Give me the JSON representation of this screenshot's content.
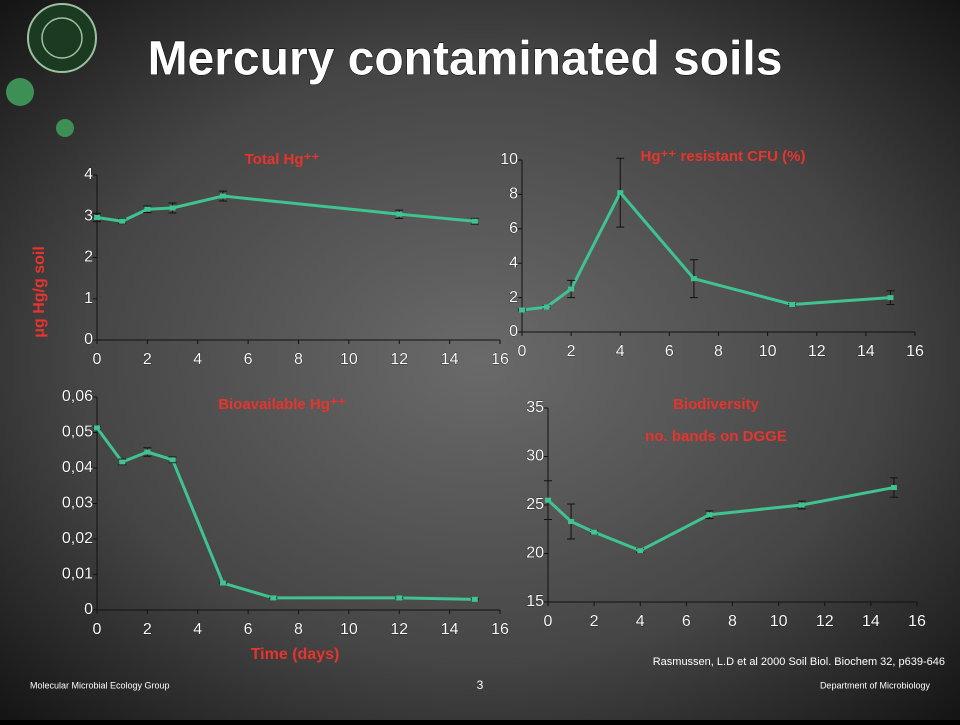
{
  "header": {
    "title": "Mercury contaminated soils"
  },
  "y_axis_label": "μg Hg/g soil",
  "x_axis_label": "Time (days)",
  "citation": "Rasmussen, L.D et al 2000 Soil Biol. Biochem 32, p639-646",
  "footer": {
    "left": "Molecular Microbial Ecology Group",
    "page": "3",
    "right": "Department of Microbiology"
  },
  "chart_data": [
    {
      "type": "line",
      "title": "Total Hg⁺⁺",
      "x": [
        0,
        1,
        2,
        3,
        5,
        12,
        15
      ],
      "series": [
        {
          "color": "#3fc391",
          "values": [
            2.97,
            2.88,
            3.17,
            3.2,
            3.49,
            3.05,
            2.88
          ],
          "errors": [
            0.1,
            0.06,
            0.08,
            0.12,
            0.12,
            0.1,
            0.07
          ]
        }
      ],
      "xlim": [
        0,
        16
      ],
      "xticks": [
        0,
        2,
        4,
        6,
        8,
        10,
        12,
        14,
        16
      ],
      "ylim": [
        0,
        4
      ],
      "yticks": [
        0,
        1,
        2,
        3,
        4
      ]
    },
    {
      "type": "line",
      "title": "Hg⁺⁺ resistant CFU (%)",
      "x": [
        0,
        1,
        2,
        4,
        7,
        11,
        15
      ],
      "series": [
        {
          "color": "#3fc391",
          "values": [
            1.28,
            1.45,
            2.5,
            8.1,
            3.1,
            1.6,
            2.0
          ],
          "errors": [
            0.05,
            0.1,
            0.5,
            2.0,
            1.1,
            0.05,
            0.4
          ]
        }
      ],
      "xlim": [
        0,
        16
      ],
      "xticks": [
        0,
        2,
        4,
        6,
        8,
        10,
        12,
        14,
        16
      ],
      "ylim": [
        0,
        10
      ],
      "yticks": [
        0,
        2,
        4,
        6,
        8,
        10
      ]
    },
    {
      "type": "line",
      "title": "Bioavailable Hg⁺⁺",
      "x": [
        0,
        1,
        2,
        3,
        5,
        7,
        12,
        15
      ],
      "series": [
        {
          "color": "#3fc391",
          "values": [
            0.0513,
            0.0417,
            0.0445,
            0.0423,
            0.0076,
            0.0034,
            0.0034,
            0.003
          ],
          "errors": [
            0.0005,
            0.0008,
            0.0012,
            0.0008,
            0.0002,
            0.0002,
            0.0002,
            0.0002
          ]
        }
      ],
      "xlim": [
        0,
        16
      ],
      "xticks": [
        0,
        2,
        4,
        6,
        8,
        10,
        12,
        14,
        16
      ],
      "ylim": [
        0,
        0.06
      ],
      "yticks": [
        0,
        {
          "value": 0.01,
          "label": "0,01"
        },
        {
          "value": 0.02,
          "label": "0,02"
        },
        {
          "value": 0.03,
          "label": "0,03"
        },
        {
          "value": 0.04,
          "label": "0,04"
        },
        {
          "value": 0.05,
          "label": "0,05"
        },
        {
          "value": 0.06,
          "label": "0,06"
        }
      ]
    },
    {
      "type": "line",
      "title": "Biodiversity",
      "subtitle": "no. bands on DGGE",
      "x": [
        0,
        1,
        2,
        4,
        7,
        11,
        15
      ],
      "series": [
        {
          "color": "#3fc391",
          "values": [
            25.5,
            23.3,
            22.2,
            20.3,
            24,
            25,
            26.8
          ],
          "errors": [
            2,
            1.8,
            0.2,
            0.2,
            0.4,
            0.4,
            1
          ]
        }
      ],
      "xlim": [
        0,
        16
      ],
      "xticks": [
        0,
        2,
        4,
        6,
        8,
        10,
        12,
        14,
        16
      ],
      "ylim": [
        15,
        35
      ],
      "yticks": [
        15,
        20,
        25,
        30,
        35
      ]
    }
  ]
}
